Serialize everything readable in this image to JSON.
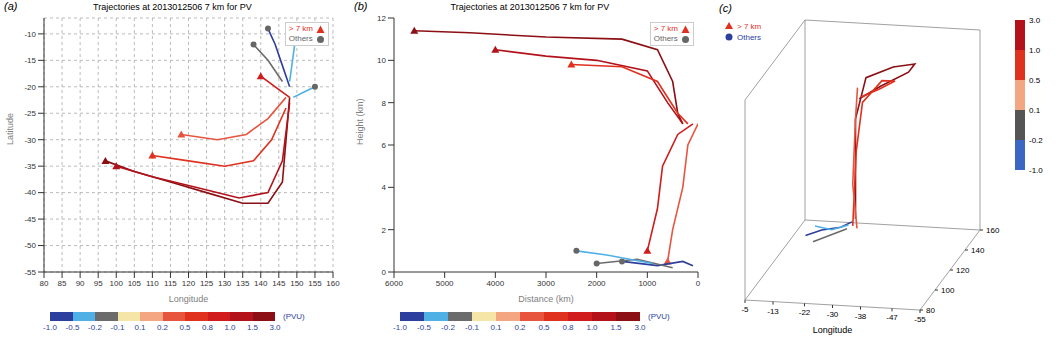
{
  "chart_data": [
    {
      "type": "line",
      "panel": "(a)",
      "title": "Trajectories at 2013012506 7 km for PV",
      "x_label": "Longitude",
      "y_label": "Latitude",
      "xlim": [
        80,
        160
      ],
      "xticks": [
        80,
        85,
        90,
        95,
        100,
        105,
        110,
        115,
        120,
        125,
        130,
        135,
        140,
        145,
        150,
        155,
        160
      ],
      "ylim": [
        -55,
        -7
      ],
      "yticks": [
        -10,
        -15,
        -20,
        -25,
        -30,
        -35,
        -40,
        -45,
        -50,
        -55
      ],
      "grid": true,
      "legend": "upper right",
      "legend_entries": [
        {
          "name": "> 7 km",
          "marker": "triangle",
          "color": "#e0301e"
        },
        {
          "name": "Others",
          "marker": "circle",
          "color": "#666666"
        }
      ],
      "colorbar": {
        "label": "(PVU)",
        "ticks": [
          {
            "value": -1,
            "label": "-1.0"
          },
          -0.5,
          -0.2,
          -0.1,
          0.1,
          0.2,
          0.5,
          0.8,
          {
            "value": 1,
            "label": "1.0"
          },
          1.5,
          {
            "value": 3,
            "label": "3.0"
          }
        ],
        "colors": [
          "#2d3f9e",
          "#4fb0e6",
          "#6b6b6b",
          "#f5e6a8",
          "#f4a582",
          "#e8553f",
          "#e0301e",
          "#d01c1c",
          "#b3121b",
          "#8b0f14"
        ]
      },
      "series": [
        {
          "color": "#8b0f14",
          "marker": "triangle",
          "x": [
            97,
            105,
            115,
            125,
            135,
            142,
            146,
            147,
            148
          ],
          "y": [
            -34,
            -36,
            -38,
            -40,
            -42,
            -42,
            -38,
            -30,
            -22
          ]
        },
        {
          "color": "#b3121b",
          "marker": "triangle",
          "x": [
            100,
            110,
            122,
            134,
            142,
            146,
            148
          ],
          "y": [
            -35,
            -37,
            -39,
            -41,
            -40,
            -34,
            -23
          ]
        },
        {
          "color": "#e0301e",
          "marker": "triangle",
          "x": [
            110,
            120,
            130,
            138,
            143,
            147
          ],
          "y": [
            -33,
            -34,
            -35,
            -34,
            -30,
            -24
          ]
        },
        {
          "color": "#e8553f",
          "marker": "triangle",
          "x": [
            118,
            128,
            136,
            142,
            147
          ],
          "y": [
            -29,
            -30,
            -29,
            -26,
            -22
          ]
        },
        {
          "color": "#d01c1c",
          "marker": "triangle",
          "x": [
            140,
            144,
            148
          ],
          "y": [
            -18,
            -20,
            -22
          ]
        },
        {
          "color": "#2d3f9e",
          "marker": "circle",
          "x": [
            142,
            144,
            146,
            148
          ],
          "y": [
            -9,
            -12,
            -16,
            -20
          ]
        },
        {
          "color": "#4fb0e6",
          "marker": "circle",
          "x": [
            150,
            149,
            148
          ],
          "y": [
            -9,
            -14,
            -19
          ]
        },
        {
          "color": "#6b6b6b",
          "marker": "circle",
          "x": [
            138,
            142,
            146
          ],
          "y": [
            -12,
            -15,
            -19
          ]
        },
        {
          "color": "#4fb0e6",
          "marker": "circle",
          "x": [
            155,
            152,
            149
          ],
          "y": [
            -20,
            -21,
            -22
          ]
        }
      ]
    },
    {
      "type": "line",
      "panel": "(b)",
      "title": "Trajectories at 2013012506 7 km for PV",
      "x_label": "Distance (km)",
      "y_label": "Height (km)",
      "xlim": [
        6000,
        0
      ],
      "xticks": [
        0,
        1000,
        2000,
        3000,
        4000,
        5000,
        6000
      ],
      "ylim": [
        0,
        12
      ],
      "yticks": [
        0,
        2,
        4,
        6,
        8,
        10,
        12
      ],
      "grid": false,
      "legend": "upper right",
      "legend_entries": [
        {
          "name": "> 7 km",
          "marker": "triangle",
          "color": "#e0301e"
        },
        {
          "name": "Others",
          "marker": "circle",
          "color": "#666666"
        }
      ],
      "colorbar": {
        "label": "(PVU)",
        "ticks": [
          {
            "value": -1,
            "label": "-1.0"
          },
          -0.5,
          -0.2,
          -0.1,
          0.1,
          0.2,
          0.5,
          0.8,
          {
            "value": 1,
            "label": "1.0"
          },
          1.5,
          {
            "value": 3,
            "label": "3.0"
          }
        ],
        "colors": [
          "#2d3f9e",
          "#4fb0e6",
          "#6b6b6b",
          "#f5e6a8",
          "#f4a582",
          "#e8553f",
          "#e0301e",
          "#d01c1c",
          "#b3121b",
          "#8b0f14"
        ]
      },
      "series": [
        {
          "color": "#8b0f14",
          "marker": "triangle",
          "x": [
            5600,
            4500,
            3000,
            1500,
            800,
            500,
            400,
            300
          ],
          "y": [
            11.4,
            11.3,
            11.1,
            11.0,
            10.5,
            9,
            7.5,
            7
          ]
        },
        {
          "color": "#b3121b",
          "marker": "triangle",
          "x": [
            4000,
            3000,
            2000,
            1000,
            600,
            300
          ],
          "y": [
            10.5,
            10.2,
            10,
            9.5,
            8,
            7
          ]
        },
        {
          "color": "#e0301e",
          "marker": "triangle",
          "x": [
            2500,
            1500,
            800,
            400,
            200
          ],
          "y": [
            9.8,
            9.7,
            9,
            7.5,
            7
          ]
        },
        {
          "color": "#d01c1c",
          "marker": "triangle",
          "x": [
            1000,
            800,
            700,
            400,
            100
          ],
          "y": [
            1,
            3,
            5,
            6.5,
            7
          ]
        },
        {
          "color": "#e8553f",
          "marker": "triangle",
          "x": [
            600,
            500,
            300,
            200,
            0
          ],
          "y": [
            0.5,
            2,
            4,
            6,
            7
          ]
        },
        {
          "color": "#2d3f9e",
          "marker": "circle",
          "x": [
            1500,
            800,
            300,
            100
          ],
          "y": [
            0.5,
            0.3,
            0.5,
            0.3
          ]
        },
        {
          "color": "#6b6b6b",
          "marker": "circle",
          "x": [
            2000,
            1200,
            500
          ],
          "y": [
            0.4,
            0.6,
            0.2
          ]
        },
        {
          "color": "#4fb0e6",
          "marker": "circle",
          "x": [
            2400,
            1800,
            900
          ],
          "y": [
            1.0,
            0.8,
            0.4
          ]
        }
      ]
    },
    {
      "type": "line3d",
      "panel": "(c)",
      "x_label": "Longitude",
      "xlim": [
        -5,
        -55
      ],
      "xticks": [
        -5,
        -13,
        -22,
        -30,
        -38,
        -47,
        -55
      ],
      "ylim": [
        80,
        160
      ],
      "yticks": [
        80,
        100,
        120,
        140,
        160
      ],
      "zlim": [
        0,
        12
      ],
      "legend": "upper left",
      "legend_entries": [
        {
          "name": "> 7 km",
          "marker": "triangle",
          "color": "#e0301e"
        },
        {
          "name": "Others",
          "marker": "circle",
          "color": "#2d3f9e"
        }
      ],
      "colorbar": {
        "ticks": [
          {
            "value": 3,
            "label": "3.0"
          },
          {
            "value": 1,
            "label": "1.0"
          },
          0.5,
          0.1,
          -0.2,
          {
            "value": -1,
            "label": "-1.0"
          }
        ],
        "colors": [
          "#b3121b",
          "#e0301e",
          "#f4a582",
          "#555555",
          "#3b66c4"
        ]
      },
      "series": [
        {
          "color": "#8b0f14",
          "x": [
            -34,
            -37,
            -41,
            -40,
            -33,
            -25,
            -22,
            -22,
            -22
          ],
          "y": [
            97,
            112,
            130,
            143,
            147,
            148,
            148,
            148,
            148
          ],
          "z": [
            11.4,
            11.3,
            11.1,
            10.8,
            10.3,
            9.5,
            7,
            4,
            1
          ]
        },
        {
          "color": "#e0301e",
          "x": [
            -30,
            -33,
            -35,
            -30,
            -24,
            -22,
            -21
          ],
          "y": [
            118,
            128,
            140,
            146,
            148,
            149,
            149
          ],
          "z": [
            10.2,
            10.1,
            9.9,
            9.5,
            8,
            5,
            0.5
          ]
        },
        {
          "color": "#e8553f",
          "x": [
            -23,
            -22,
            -21,
            -22
          ],
          "y": [
            146,
            148,
            149,
            150
          ],
          "z": [
            9,
            7,
            3,
            0.3
          ]
        },
        {
          "color": "#2d3f9e",
          "x": [
            -9,
            -13,
            -18,
            -21
          ],
          "y": [
            142,
            145,
            147,
            148
          ],
          "z": [
            0.2,
            0.4,
            0.5,
            0.8
          ]
        },
        {
          "color": "#4fb0e6",
          "x": [
            -10,
            -15,
            -20
          ],
          "y": [
            150,
            149,
            148
          ],
          "z": [
            0.3,
            0.2,
            0.6
          ]
        },
        {
          "color": "#6b6b6b",
          "x": [
            -12,
            -16,
            -20
          ],
          "y": [
            138,
            142,
            146
          ],
          "z": [
            0.1,
            0.3,
            0.5
          ]
        }
      ]
    }
  ]
}
